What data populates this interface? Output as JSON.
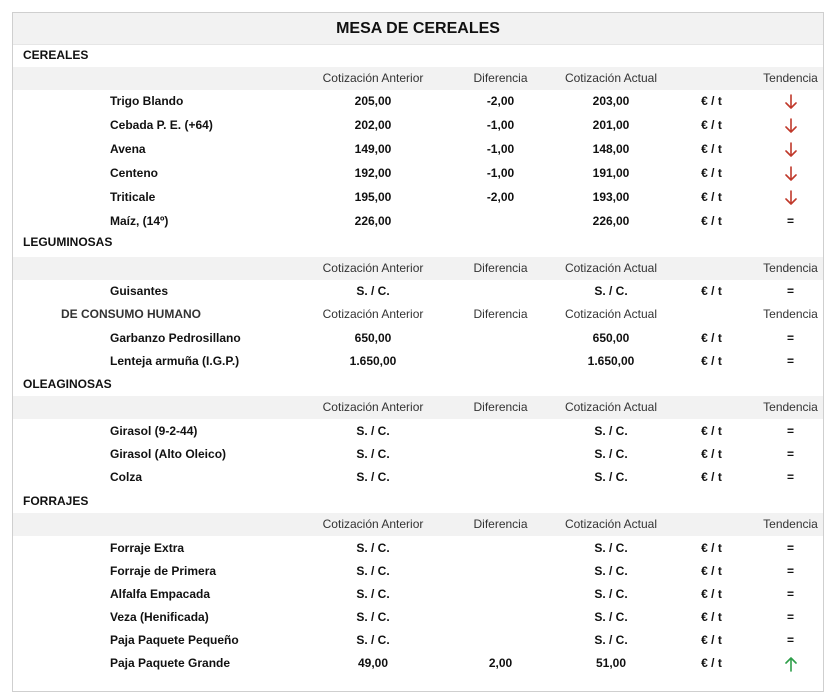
{
  "title": "MESA DE CEREALES",
  "colors": {
    "down": "#c0392b",
    "up": "#2e9e4a",
    "shade": "#f2f2f2"
  },
  "header": {
    "anterior": "Cotización Anterior",
    "diferencia": "Diferencia",
    "actual": "Cotización Actual",
    "tendencia": "Tendencia"
  },
  "sections": {
    "cereales": {
      "label": "CEREALES",
      "items": [
        {
          "name": "Trigo Blando",
          "anterior": "205,00",
          "diferencia": "-2,00",
          "actual": "203,00",
          "unidad": "€ / t",
          "tendencia": "down-arrow"
        },
        {
          "name": "Cebada P. E. (+64)",
          "anterior": "202,00",
          "diferencia": "-1,00",
          "actual": "201,00",
          "unidad": "€ / t",
          "tendencia": "down-arrow"
        },
        {
          "name": "Avena",
          "anterior": "149,00",
          "diferencia": "-1,00",
          "actual": "148,00",
          "unidad": "€ / t",
          "tendencia": "down-arrow"
        },
        {
          "name": "Centeno",
          "anterior": "192,00",
          "diferencia": "-1,00",
          "actual": "191,00",
          "unidad": "€ / t",
          "tendencia": "down-arrow"
        },
        {
          "name": "Triticale",
          "anterior": "195,00",
          "diferencia": "-2,00",
          "actual": "193,00",
          "unidad": "€ / t",
          "tendencia": "down-arrow"
        },
        {
          "name": "Maíz, (14º)",
          "anterior": "226,00",
          "diferencia": "",
          "actual": "226,00",
          "unidad": "€ / t",
          "tendencia": "="
        }
      ]
    },
    "leguminosas": {
      "label": "LEGUMINOSAS",
      "items": [
        {
          "name": "Guisantes",
          "anterior": "S. / C.",
          "diferencia": "",
          "actual": "S. / C.",
          "unidad": "€ / t",
          "tendencia": "="
        }
      ],
      "sub_label": "DE CONSUMO HUMANO",
      "sub_items": [
        {
          "name": "Garbanzo Pedrosillano",
          "anterior": "650,00",
          "diferencia": "",
          "actual": "650,00",
          "unidad": "€ / t",
          "tendencia": "="
        },
        {
          "name": "Lenteja armuña (I.G.P.)",
          "anterior": "1.650,00",
          "diferencia": "",
          "actual": "1.650,00",
          "unidad": "€ / t",
          "tendencia": "="
        }
      ]
    },
    "oleaginosas": {
      "label": "OLEAGINOSAS",
      "items": [
        {
          "name": "Girasol (9-2-44)",
          "anterior": "S. / C.",
          "diferencia": "",
          "actual": "S. / C.",
          "unidad": "€ / t",
          "tendencia": "="
        },
        {
          "name": "Girasol (Alto Oleico)",
          "anterior": "S. / C.",
          "diferencia": "",
          "actual": "S. / C.",
          "unidad": "€ / t",
          "tendencia": "="
        },
        {
          "name": "Colza",
          "anterior": "S. / C.",
          "diferencia": "",
          "actual": "S. / C.",
          "unidad": "€ / t",
          "tendencia": "="
        }
      ]
    },
    "forrajes": {
      "label": "FORRAJES",
      "items": [
        {
          "name": "Forraje Extra",
          "anterior": "S. / C.",
          "diferencia": "",
          "actual": "S. / C.",
          "unidad": "€ / t",
          "tendencia": "="
        },
        {
          "name": "Forraje de Primera",
          "anterior": "S. / C.",
          "diferencia": "",
          "actual": "S. / C.",
          "unidad": "€ / t",
          "tendencia": "="
        },
        {
          "name": "Alfalfa Empacada",
          "anterior": "S. / C.",
          "diferencia": "",
          "actual": "S. / C.",
          "unidad": "€ / t",
          "tendencia": "="
        },
        {
          "name": "Veza (Henificada)",
          "anterior": "S. / C.",
          "diferencia": "",
          "actual": "S. / C.",
          "unidad": "€ / t",
          "tendencia": "="
        },
        {
          "name": "Paja Paquete Pequeño",
          "anterior": "S. / C.",
          "diferencia": "",
          "actual": "S. / C.",
          "unidad": "€ / t",
          "tendencia": "="
        },
        {
          "name": "Paja Paquete Grande",
          "anterior": "49,00",
          "diferencia": "2,00",
          "actual": "51,00",
          "unidad": "€ / t",
          "tendencia": "up-arrow"
        }
      ]
    }
  }
}
